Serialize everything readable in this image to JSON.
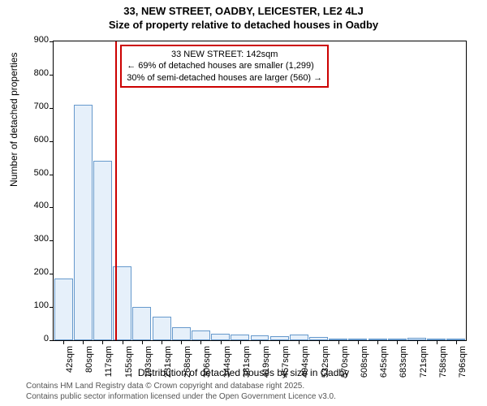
{
  "title_main": "33, NEW STREET, OADBY, LEICESTER, LE2 4LJ",
  "title_sub": "Size of property relative to detached houses in Oadby",
  "y_axis_label": "Number of detached properties",
  "x_axis_label": "Distribution of detached houses by size in Oadby",
  "footer_line1": "Contains HM Land Registry data © Crown copyright and database right 2025.",
  "footer_line2": "Contains public sector information licensed under the Open Government Licence v3.0.",
  "annotation": {
    "line1": "33 NEW STREET: 142sqm",
    "line2": "← 69% of detached houses are smaller (1,299)",
    "line3": "30% of semi-detached houses are larger (560) →"
  },
  "chart": {
    "type": "histogram",
    "ylim": [
      0,
      900
    ],
    "ytick_step": 100,
    "background_color": "#ffffff",
    "bar_fill": "#e6f0fa",
    "bar_border": "#6699cc",
    "vline_color": "#cc0000",
    "vline_x_value": 142,
    "x_categories": [
      "42sqm",
      "80sqm",
      "117sqm",
      "155sqm",
      "193sqm",
      "231sqm",
      "268sqm",
      "306sqm",
      "344sqm",
      "381sqm",
      "419sqm",
      "457sqm",
      "494sqm",
      "532sqm",
      "570sqm",
      "608sqm",
      "645sqm",
      "683sqm",
      "721sqm",
      "758sqm",
      "796sqm"
    ],
    "x_numeric": [
      42,
      80,
      117,
      155,
      193,
      231,
      268,
      306,
      344,
      381,
      419,
      457,
      494,
      532,
      570,
      608,
      645,
      683,
      721,
      758,
      796
    ],
    "values": [
      185,
      710,
      540,
      222,
      100,
      72,
      40,
      30,
      20,
      18,
      14,
      12,
      16,
      10,
      6,
      4,
      3,
      2,
      8,
      2,
      1
    ]
  }
}
